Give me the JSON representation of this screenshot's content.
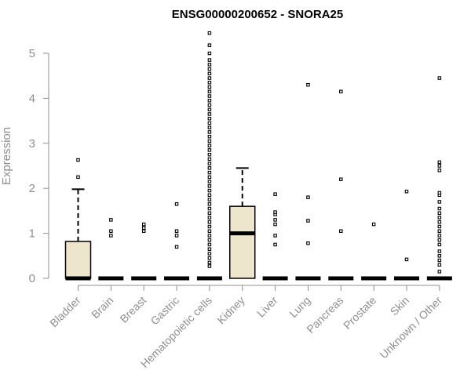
{
  "chart_data": {
    "type": "boxplot",
    "title": "ENSG00000200652 - SNORA25",
    "xlabel": "",
    "ylabel": "Expression",
    "ylim": [
      0,
      5.5
    ],
    "yticks": [
      0,
      1,
      2,
      3,
      4,
      5
    ],
    "colors": {
      "box_fill": "#ede6cc",
      "stroke": "#000000",
      "axis": "#8f8f8f"
    },
    "categories": [
      "Bladder",
      "Brain",
      "Breast",
      "Gastric",
      "Hematopoietic cells",
      "Kidney",
      "Liver",
      "Lung",
      "Pancreas",
      "Prostate",
      "Skin",
      "Unknown / Other"
    ],
    "boxes": [
      {
        "category": "Bladder",
        "q1": 0,
        "median": 0,
        "q3": 0.82,
        "whisker_low": 0,
        "whisker_high": 1.98,
        "outliers": [
          2.25,
          2.63
        ]
      },
      {
        "category": "Brain",
        "q1": 0,
        "median": 0,
        "q3": 0,
        "whisker_low": 0,
        "whisker_high": 0,
        "outliers": [
          0.95,
          1.05,
          1.3
        ]
      },
      {
        "category": "Breast",
        "q1": 0,
        "median": 0,
        "q3": 0,
        "whisker_low": 0,
        "whisker_high": 0,
        "outliers": [
          1.05,
          1.12,
          1.2
        ]
      },
      {
        "category": "Gastric",
        "q1": 0,
        "median": 0,
        "q3": 0,
        "whisker_low": 0,
        "whisker_high": 0,
        "outliers": [
          0.7,
          0.95,
          1.05,
          1.65
        ]
      },
      {
        "category": "Hematopoietic cells",
        "q1": 0,
        "median": 0,
        "q3": 0,
        "whisker_low": 0,
        "whisker_high": 0,
        "outliers": [
          0.27,
          0.35,
          0.45,
          0.55,
          0.65,
          0.75,
          0.85,
          0.95,
          1.05,
          1.15,
          1.25,
          1.35,
          1.45,
          1.55,
          1.65,
          1.75,
          1.85,
          1.95,
          2.05,
          2.15,
          2.25,
          2.35,
          2.45,
          2.55,
          2.65,
          2.75,
          2.85,
          2.95,
          3.05,
          3.15,
          3.25,
          3.35,
          3.45,
          3.55,
          3.65,
          3.75,
          3.85,
          3.95,
          4.05,
          4.15,
          4.25,
          4.35,
          4.45,
          4.55,
          4.65,
          4.75,
          4.85,
          5.0,
          5.18,
          5.45
        ]
      },
      {
        "category": "Kidney",
        "q1": 0,
        "median": 1.0,
        "q3": 1.6,
        "whisker_low": 0,
        "whisker_high": 2.45,
        "outliers": []
      },
      {
        "category": "Liver",
        "q1": 0,
        "median": 0,
        "q3": 0,
        "whisker_low": 0,
        "whisker_high": 0,
        "outliers": [
          0.75,
          0.95,
          1.2,
          1.3,
          1.42,
          1.47,
          1.87
        ]
      },
      {
        "category": "Lung",
        "q1": 0,
        "median": 0,
        "q3": 0,
        "whisker_low": 0,
        "whisker_high": 0,
        "outliers": [
          0.78,
          1.28,
          1.8,
          4.3
        ]
      },
      {
        "category": "Pancreas",
        "q1": 0,
        "median": 0,
        "q3": 0,
        "whisker_low": 0,
        "whisker_high": 0,
        "outliers": [
          1.05,
          2.2,
          4.15
        ]
      },
      {
        "category": "Prostate",
        "q1": 0,
        "median": 0,
        "q3": 0,
        "whisker_low": 0,
        "whisker_high": 0,
        "outliers": [
          1.2
        ]
      },
      {
        "category": "Skin",
        "q1": 0,
        "median": 0,
        "q3": 0,
        "whisker_low": 0,
        "whisker_high": 0,
        "outliers": [
          0.42,
          1.93
        ]
      },
      {
        "category": "Unknown / Other",
        "q1": 0,
        "median": 0,
        "q3": 0,
        "whisker_low": 0,
        "whisker_high": 0,
        "outliers": [
          0.15,
          0.3,
          0.4,
          0.5,
          0.6,
          0.75,
          0.85,
          0.95,
          1.05,
          1.15,
          1.25,
          1.35,
          1.45,
          1.55,
          1.7,
          1.85,
          1.9,
          2.4,
          2.5,
          2.58,
          4.45
        ]
      }
    ]
  }
}
